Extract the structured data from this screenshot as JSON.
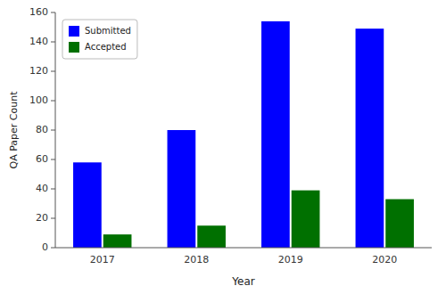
{
  "chart_data": {
    "type": "bar",
    "xlabel": "Year",
    "ylabel": "QA Paper Count",
    "categories": [
      "2017",
      "2018",
      "2019",
      "2020"
    ],
    "series": [
      {
        "name": "Submitted",
        "color": "#0000ff",
        "values": [
          58,
          80,
          154,
          149
        ]
      },
      {
        "name": "Accepted",
        "color": "#007000",
        "values": [
          9,
          15,
          39,
          33
        ]
      }
    ],
    "ylim": [
      0,
      160
    ],
    "yticks": [
      0,
      20,
      40,
      60,
      80,
      100,
      120,
      140,
      160
    ],
    "legend": "upper-left"
  }
}
